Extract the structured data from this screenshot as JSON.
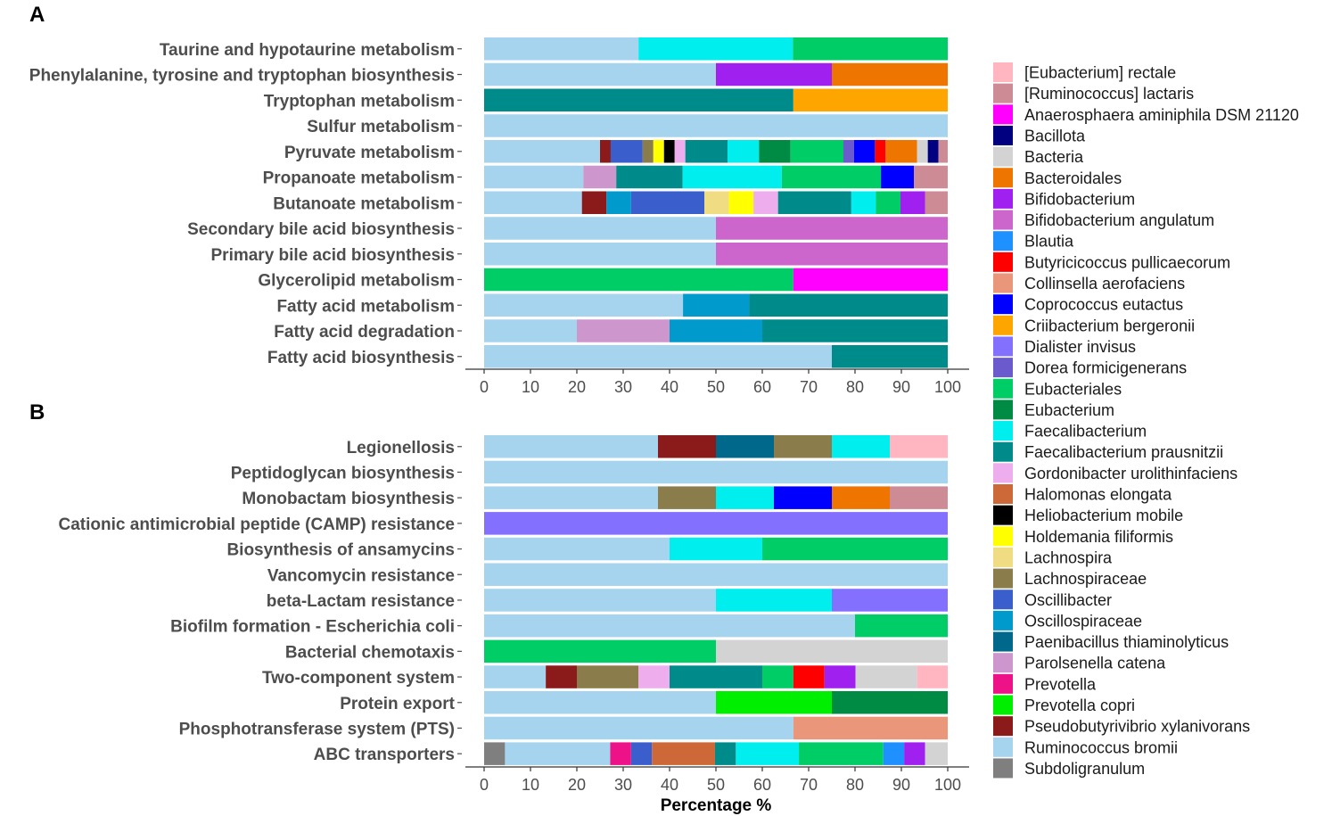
{
  "chart_data": {
    "type": "bar",
    "orientation": "horizontal-stacked",
    "xlabel": "Percentage %",
    "xlim": [
      0,
      100
    ],
    "xticks": [
      "0",
      "10",
      "20",
      "30",
      "40",
      "50",
      "60",
      "70",
      "80",
      "90",
      "100"
    ],
    "legend": {
      "placement": "right",
      "entries": [
        {
          "name": "[Eubacterium] rectale",
          "color": "#FFB6C1"
        },
        {
          "name": "[Ruminococcus] lactaris",
          "color": "#CD8C95"
        },
        {
          "name": "Anaerosphaera aminiphila DSM 21120",
          "color": "#FF00FF"
        },
        {
          "name": "Bacillota",
          "color": "#000080"
        },
        {
          "name": "Bacteria",
          "color": "#D3D3D3"
        },
        {
          "name": "Bacteroidales",
          "color": "#EE7600"
        },
        {
          "name": "Bifidobacterium",
          "color": "#A020F0"
        },
        {
          "name": "Bifidobacterium angulatum",
          "color": "#CC66CC"
        },
        {
          "name": "Blautia",
          "color": "#1E90FF"
        },
        {
          "name": "Butyricicoccus pullicaecorum",
          "color": "#FF0000"
        },
        {
          "name": "Collinsella aerofaciens",
          "color": "#E9967A"
        },
        {
          "name": "Coprococcus eutactus",
          "color": "#0000FF"
        },
        {
          "name": "Criibacterium bergeronii",
          "color": "#FFA500"
        },
        {
          "name": "Dialister invisus",
          "color": "#8470FF"
        },
        {
          "name": "Dorea formicigenerans",
          "color": "#6A5ACD"
        },
        {
          "name": "Eubacteriales",
          "color": "#00CD66"
        },
        {
          "name": "Eubacterium",
          "color": "#008B45"
        },
        {
          "name": "Faecalibacterium",
          "color": "#00EEEE"
        },
        {
          "name": "Faecalibacterium prausnitzii",
          "color": "#008B8B"
        },
        {
          "name": "Gordonibacter urolithinfaciens",
          "color": "#EEAEEE"
        },
        {
          "name": "Halomonas elongata",
          "color": "#CD6839"
        },
        {
          "name": "Heliobacterium mobile",
          "color": "#000000"
        },
        {
          "name": "Holdemania filiformis",
          "color": "#FFFF00"
        },
        {
          "name": "Lachnospira",
          "color": "#F0DC82"
        },
        {
          "name": "Lachnospiraceae",
          "color": "#8B7D4B"
        },
        {
          "name": "Oscillibacter",
          "color": "#3A5FCD"
        },
        {
          "name": "Oscillospiraceae",
          "color": "#009ACD"
        },
        {
          "name": "Paenibacillus thiaminolyticus",
          "color": "#00688B"
        },
        {
          "name": "Parolsenella catena",
          "color": "#CD96CD"
        },
        {
          "name": "Prevotella",
          "color": "#EE1289"
        },
        {
          "name": "Prevotella copri",
          "color": "#00EE00"
        },
        {
          "name": "Pseudobutyrivibrio xylanivorans",
          "color": "#8B1A1A"
        },
        {
          "name": "Ruminococcus bromii",
          "color": "#A6D3EE"
        },
        {
          "name": "Subdoligranulum",
          "color": "#7F7F7F"
        }
      ]
    },
    "panels": [
      {
        "label": "A",
        "categories": [
          {
            "name": "Taurine and hypotaurine metabolism",
            "segments": [
              [
                "Ruminococcus bromii",
                33.3
              ],
              [
                "Faecalibacterium",
                33.3
              ],
              [
                "Eubacteriales",
                33.4
              ]
            ]
          },
          {
            "name": "Phenylalanine, tyrosine and tryptophan biosynthesis",
            "segments": [
              [
                "Ruminococcus bromii",
                50
              ],
              [
                "Bifidobacterium",
                25
              ],
              [
                "Bacteroidales",
                25
              ]
            ]
          },
          {
            "name": "Tryptophan metabolism",
            "segments": [
              [
                "Faecalibacterium prausnitzii",
                66.7
              ],
              [
                "Criibacterium bergeronii",
                33.3
              ]
            ]
          },
          {
            "name": "Sulfur metabolism",
            "segments": [
              [
                "Ruminococcus bromii",
                100
              ]
            ]
          },
          {
            "name": "Pyruvate metabolism",
            "segments": [
              [
                "Ruminococcus bromii",
                25
              ],
              [
                "Pseudobutyrivibrio xylanivorans",
                2.3
              ],
              [
                "Oscillibacter",
                6.9
              ],
              [
                "Lachnospiraceae",
                2.3
              ],
              [
                "Holdemania filiformis",
                2.3
              ],
              [
                "Heliobacterium mobile",
                2.3
              ],
              [
                "Gordonibacter urolithinfaciens",
                2.3
              ],
              [
                "Faecalibacterium prausnitzii",
                9.1
              ],
              [
                "Faecalibacterium",
                6.8
              ],
              [
                "Eubacterium",
                6.8
              ],
              [
                "Eubacteriales",
                11.4
              ],
              [
                "Dorea formicigenerans",
                2.3
              ],
              [
                "Coprococcus eutactus",
                4.5
              ],
              [
                "Butyricicoccus pullicaecorum",
                2.3
              ],
              [
                "Bacteroidales",
                6.8
              ],
              [
                "Bacteria",
                2.3
              ],
              [
                "Bacillota",
                2.3
              ],
              [
                "[Ruminococcus] lactaris",
                2.3
              ]
            ]
          },
          {
            "name": "Propanoate metabolism",
            "segments": [
              [
                "Ruminococcus bromii",
                21.4
              ],
              [
                "Parolsenella catena",
                7.1
              ],
              [
                "Faecalibacterium prausnitzii",
                14.3
              ],
              [
                "Faecalibacterium",
                21.4
              ],
              [
                "Eubacteriales",
                21.4
              ],
              [
                "Coprococcus eutactus",
                7.1
              ],
              [
                "[Ruminococcus] lactaris",
                7.3
              ]
            ]
          },
          {
            "name": "Butanoate metabolism",
            "segments": [
              [
                "Ruminococcus bromii",
                21.1
              ],
              [
                "Pseudobutyrivibrio xylanivorans",
                5.3
              ],
              [
                "Oscillospiraceae",
                5.3
              ],
              [
                "Oscillibacter",
                15.8
              ],
              [
                "Lachnospira",
                5.3
              ],
              [
                "Holdemania filiformis",
                5.3
              ],
              [
                "Gordonibacter urolithinfaciens",
                5.3
              ],
              [
                "Faecalibacterium prausnitzii",
                15.8
              ],
              [
                "Faecalibacterium",
                5.3
              ],
              [
                "Eubacteriales",
                5.3
              ],
              [
                "Bifidobacterium",
                5.3
              ],
              [
                "[Ruminococcus] lactaris",
                5.1
              ]
            ]
          },
          {
            "name": "Secondary bile acid biosynthesis",
            "segments": [
              [
                "Ruminococcus bromii",
                50
              ],
              [
                "Bifidobacterium angulatum",
                50
              ]
            ]
          },
          {
            "name": "Primary bile acid biosynthesis",
            "segments": [
              [
                "Ruminococcus bromii",
                50
              ],
              [
                "Bifidobacterium angulatum",
                50
              ]
            ]
          },
          {
            "name": "Glycerolipid metabolism",
            "segments": [
              [
                "Eubacteriales",
                66.7
              ],
              [
                "Anaerosphaera aminiphila DSM 21120",
                33.3
              ]
            ]
          },
          {
            "name": "Fatty acid metabolism",
            "segments": [
              [
                "Ruminococcus bromii",
                42.9
              ],
              [
                "Oscillospiraceae",
                14.3
              ],
              [
                "Faecalibacterium prausnitzii",
                42.8
              ]
            ]
          },
          {
            "name": "Fatty acid degradation",
            "segments": [
              [
                "Ruminococcus bromii",
                20
              ],
              [
                "Parolsenella catena",
                20
              ],
              [
                "Oscillospiraceae",
                20
              ],
              [
                "Faecalibacterium prausnitzii",
                40
              ]
            ]
          },
          {
            "name": "Fatty acid biosynthesis",
            "segments": [
              [
                "Ruminococcus bromii",
                75
              ],
              [
                "Faecalibacterium prausnitzii",
                25
              ]
            ]
          }
        ]
      },
      {
        "label": "B",
        "categories": [
          {
            "name": "Legionellosis",
            "segments": [
              [
                "Ruminococcus bromii",
                37.5
              ],
              [
                "Pseudobutyrivibrio xylanivorans",
                12.5
              ],
              [
                "Paenibacillus thiaminolyticus",
                12.5
              ],
              [
                "Lachnospiraceae",
                12.5
              ],
              [
                "Faecalibacterium",
                12.5
              ],
              [
                "[Eubacterium] rectale",
                12.5
              ]
            ]
          },
          {
            "name": "Peptidoglycan biosynthesis",
            "segments": [
              [
                "Ruminococcus bromii",
                100
              ]
            ]
          },
          {
            "name": "Monobactam biosynthesis",
            "segments": [
              [
                "Ruminococcus bromii",
                37.5
              ],
              [
                "Lachnospiraceae",
                12.5
              ],
              [
                "Faecalibacterium",
                12.5
              ],
              [
                "Coprococcus eutactus",
                12.5
              ],
              [
                "Bacteroidales",
                12.5
              ],
              [
                "[Ruminococcus] lactaris",
                12.5
              ]
            ]
          },
          {
            "name": "Cationic antimicrobial peptide (CAMP) resistance",
            "segments": [
              [
                "Dialister invisus",
                100
              ]
            ]
          },
          {
            "name": "Biosynthesis of ansamycins",
            "segments": [
              [
                "Ruminococcus bromii",
                40
              ],
              [
                "Faecalibacterium",
                20
              ],
              [
                "Eubacteriales",
                40
              ]
            ]
          },
          {
            "name": "Vancomycin resistance",
            "segments": [
              [
                "Ruminococcus bromii",
                100
              ]
            ]
          },
          {
            "name": "beta-Lactam resistance",
            "segments": [
              [
                "Ruminococcus bromii",
                50
              ],
              [
                "Faecalibacterium",
                25
              ],
              [
                "Dialister invisus",
                25
              ]
            ]
          },
          {
            "name": "Biofilm formation - Escherichia coli",
            "segments": [
              [
                "Ruminococcus bromii",
                80
              ],
              [
                "Eubacteriales",
                20
              ]
            ]
          },
          {
            "name": "Bacterial chemotaxis",
            "segments": [
              [
                "Eubacteriales",
                50
              ],
              [
                "Bacteria",
                50
              ]
            ]
          },
          {
            "name": "Two-component system",
            "segments": [
              [
                "Ruminococcus bromii",
                13.3
              ],
              [
                "Pseudobutyrivibrio xylanivorans",
                6.7
              ],
              [
                "Lachnospiraceae",
                13.3
              ],
              [
                "Gordonibacter urolithinfaciens",
                6.7
              ],
              [
                "Faecalibacterium prausnitzii",
                20
              ],
              [
                "Eubacteriales",
                6.7
              ],
              [
                "Butyricicoccus pullicaecorum",
                6.7
              ],
              [
                "Bifidobacterium",
                6.7
              ],
              [
                "Bacteria",
                13.3
              ],
              [
                "[Eubacterium] rectale",
                6.6
              ]
            ]
          },
          {
            "name": "Protein export",
            "segments": [
              [
                "Ruminococcus bromii",
                50
              ],
              [
                "Prevotella copri",
                25
              ],
              [
                "Eubacterium",
                25
              ]
            ]
          },
          {
            "name": "Phosphotransferase system (PTS)",
            "segments": [
              [
                "Ruminococcus bromii",
                66.7
              ],
              [
                "Collinsella aerofaciens",
                33.3
              ]
            ]
          },
          {
            "name": "ABC transporters",
            "segments": [
              [
                "Subdoligranulum",
                4.5
              ],
              [
                "Ruminococcus bromii",
                22.7
              ],
              [
                "Prevotella",
                4.5
              ],
              [
                "Oscillibacter",
                4.5
              ],
              [
                "Halomonas elongata",
                13.6
              ],
              [
                "Faecalibacterium prausnitzii",
                4.5
              ],
              [
                "Faecalibacterium",
                13.6
              ],
              [
                "Eubacteriales",
                18.2
              ],
              [
                "Blautia",
                4.5
              ],
              [
                "Bifidobacterium",
                4.5
              ],
              [
                "Bacteria",
                4.9
              ]
            ]
          }
        ]
      }
    ]
  }
}
